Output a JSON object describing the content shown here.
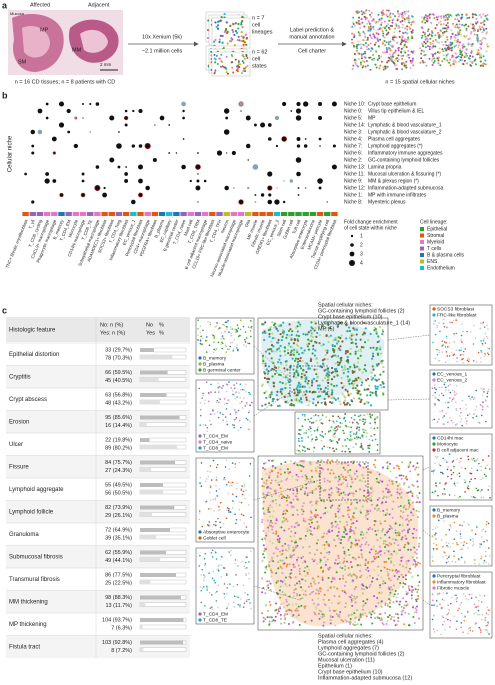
{
  "panel_a": {
    "label": "a",
    "affected": "Affected",
    "adjacent": "Adjacent",
    "tissue_labels": [
      "Mucosa",
      "MP",
      "SM",
      "MM"
    ],
    "scale": "2 mm",
    "caption": "n = 16 CD tissues; n = 8 patients with CD",
    "platform": "10x Xenium (5k)",
    "cells": "~2.1 million cells",
    "lineages": [
      "n = 7",
      "cell",
      "lineages"
    ],
    "states": [
      "n = 62",
      "cell",
      "states"
    ],
    "step": [
      "Label prediction &",
      "manual annotation"
    ],
    "charter": "Cell charter",
    "niches": "n = 15 spatial cellular niches"
  },
  "panel_b": {
    "label": "b",
    "y_label": "Cellular niche",
    "niches": [
      {
        "id": "Niche 10:",
        "name": "Crypt base epithelium",
        "color": "#222222"
      },
      {
        "id": "Niche 0:",
        "name": "Villus tip epithelium & IEL",
        "color": "#222222"
      },
      {
        "id": "Niche 5:",
        "name": "MP",
        "color": "#222222"
      },
      {
        "id": "Niche 14:",
        "name": "Lymphatic & blood vasculature_1",
        "color": "#222222"
      },
      {
        "id": "Niche 3:",
        "name": "Lymphatic & blood vasculature_2",
        "color": "#222222"
      },
      {
        "id": "Niche 4:",
        "name": "Plasma cell aggregates",
        "color": "#222222"
      },
      {
        "id": "Niche 7:",
        "name": "Lymphoid aggregates (*)",
        "color": "#3aa63a"
      },
      {
        "id": "Niche 6:",
        "name": "Inflammatory immune aggregates",
        "color": "#222222"
      },
      {
        "id": "Niche 2:",
        "name": "GC-containing lymphoid follicles",
        "color": "#222222"
      },
      {
        "id": "Niche 13:",
        "name": "Lamina propria",
        "color": "#222222"
      },
      {
        "id": "Niche 11:",
        "name": "Mucosal ulceration & fissuring (*)",
        "color": "#d62728"
      },
      {
        "id": "Niche 9:",
        "name": "MM & plexus region (*)",
        "color": "#9467bd"
      },
      {
        "id": "Niche 12:",
        "name": "Inflammation-adapted submucosa",
        "color": "#222222"
      },
      {
        "id": "Niche 1:",
        "name": "MP with immune infiltrates",
        "color": "#222222"
      },
      {
        "id": "Niche 8:",
        "name": "Myenteric plexus",
        "color": "#222222"
      }
    ],
    "size_legend_title": [
      "Fold change enrichment",
      "of cell state within niche"
    ],
    "size_legend": [
      1,
      2,
      3,
      4
    ],
    "lineage_title": "Cell lineage:",
    "lineages": [
      {
        "name": "Epithelial",
        "color": "#2ca02c"
      },
      {
        "name": "Stromal",
        "color": "#e6550d"
      },
      {
        "name": "Myeloid",
        "color": "#e377c2"
      },
      {
        "name": "T cells",
        "color": "#9467bd"
      },
      {
        "name": "B & plasma cells",
        "color": "#1f77b4"
      },
      {
        "name": "ENS",
        "color": "#bcbd22"
      },
      {
        "name": "Endothelium",
        "color": "#17becf"
      }
    ],
    "cell_states": [
      {
        "name": "TNC+ fibrotic myofibroblast",
        "color": "#e6550d"
      },
      {
        "name": "T_γδ",
        "color": "#9467bd"
      },
      {
        "name": "T_CD8_cycling",
        "color": "#9467bd"
      },
      {
        "name": "CXCL9+ macrophage",
        "color": "#e377c2"
      },
      {
        "name": "Phagocytic macrophage",
        "color": "#e377c2"
      },
      {
        "name": "B_memory",
        "color": "#1f77b4"
      },
      {
        "name": "T_CD4_EM",
        "color": "#9467bd"
      },
      {
        "name": "Monocyte",
        "color": "#e377c2"
      },
      {
        "name": "CD14hi macrophage",
        "color": "#e377c2"
      },
      {
        "name": "T_CD8_TE",
        "color": "#9467bd"
      },
      {
        "name": "Subepithelial macrophage",
        "color": "#e377c2"
      },
      {
        "name": "ADAMDEC1+ fibroblast",
        "color": "#e6550d"
      },
      {
        "name": "SOCS3+ fibroblast",
        "color": "#e6550d"
      },
      {
        "name": "T_CD4_Treg",
        "color": "#9467bd"
      },
      {
        "name": "Inflammatory fibroblast",
        "color": "#e6550d"
      },
      {
        "name": "EC_venous_1",
        "color": "#17becf"
      },
      {
        "name": "Pericryptal fibroblast",
        "color": "#e6550d"
      },
      {
        "name": "CD4+ macrophage",
        "color": "#e377c2"
      },
      {
        "name": "PDGFRA+ fibroblast",
        "color": "#e6550d"
      },
      {
        "name": "B_plasma",
        "color": "#1f77b4"
      },
      {
        "name": "EC_capillary",
        "color": "#17becf"
      },
      {
        "name": "B germinal center",
        "color": "#1f77b4"
      },
      {
        "name": "T_CD4_naive",
        "color": "#9467bd"
      },
      {
        "name": "Mast cell",
        "color": "#e377c2"
      },
      {
        "name": "T_CD8_TRM",
        "color": "#9467bd"
      },
      {
        "name": "B cell adjacent macrophage",
        "color": "#e377c2"
      },
      {
        "name": "CCL19+ FRC-like fibroblast",
        "color": "#e6550d"
      },
      {
        "name": "T_CD4_TFH",
        "color": "#9467bd"
      },
      {
        "name": "Neuron",
        "color": "#bcbd22"
      },
      {
        "name": "Neuron-associated macrophage",
        "color": "#e377c2"
      },
      {
        "name": "Muscle-associated macrophage",
        "color": "#e377c2"
      },
      {
        "name": "Glia",
        "color": "#bcbd22"
      },
      {
        "name": "MP muscle",
        "color": "#e6550d"
      },
      {
        "name": "Fibrotic muscle",
        "color": "#e6550d"
      },
      {
        "name": "GREM1+ fibroblast",
        "color": "#e6550d"
      },
      {
        "name": "EC_venous_2",
        "color": "#17becf"
      },
      {
        "name": "Stem cell",
        "color": "#2ca02c"
      },
      {
        "name": "Goblet cell",
        "color": "#2ca02c"
      },
      {
        "name": "Tuft cell",
        "color": "#2ca02c"
      },
      {
        "name": "Absorptive enterocyte",
        "color": "#2ca02c"
      },
      {
        "name": "Enteroendocrine",
        "color": "#2ca02c"
      },
      {
        "name": "MCAM+ pericyte",
        "color": "#e6550d"
      },
      {
        "name": "Transit-amplifying cell",
        "color": "#2ca02c"
      },
      {
        "name": "CD34+ pericryptal fibroblast",
        "color": "#e6550d"
      }
    ]
  },
  "panel_c": {
    "label": "c",
    "table": {
      "header": {
        "feature": "Histologic feature",
        "counts": [
          "No: n (%)",
          "Yes: n (%)"
        ],
        "bars": [
          "No",
          "%",
          "Yes",
          "%"
        ]
      },
      "rows": [
        {
          "feature": "Epithelial distortion",
          "no": "33 (29.7%)",
          "yes": "78 (70.3%)",
          "no_pct": 29.7,
          "yes_pct": 70.3
        },
        {
          "feature": "Cryptitis",
          "no": "66 (59.5%)",
          "yes": "45 (40.5%)",
          "no_pct": 59.5,
          "yes_pct": 40.5
        },
        {
          "feature": "Crypt abscess",
          "no": "63 (56.8%)",
          "yes": "48 (43.2%)",
          "no_pct": 56.8,
          "yes_pct": 43.2
        },
        {
          "feature": "Erosion",
          "no": "95 (85.6%)",
          "yes": "16 (14.4%)",
          "no_pct": 85.6,
          "yes_pct": 14.4
        },
        {
          "feature": "Ulcer",
          "no": "22 (19.8%)",
          "yes": "89 (80.2%)",
          "no_pct": 19.8,
          "yes_pct": 80.2
        },
        {
          "feature": "Fissure",
          "no": "84 (75.7%)",
          "yes": "27 (24.3%)",
          "no_pct": 75.7,
          "yes_pct": 24.3
        },
        {
          "feature": "Lymphoid aggregate",
          "no": "55 (49.5%)",
          "yes": "56 (50.5%)",
          "no_pct": 49.5,
          "yes_pct": 50.5
        },
        {
          "feature": "Lymphoid follicle",
          "no": "82 (73.9%)",
          "yes": "29 (26.1%)",
          "no_pct": 73.9,
          "yes_pct": 26.1
        },
        {
          "feature": "Granuloma",
          "no": "72 (64.9%)",
          "yes": "39 (35.1%)",
          "no_pct": 64.9,
          "yes_pct": 35.1
        },
        {
          "feature": "Submucosal fibrosis",
          "no": "62 (55.9%)",
          "yes": "49 (44.1%)",
          "no_pct": 55.9,
          "yes_pct": 44.1
        },
        {
          "feature": "Transmural fibrosis",
          "no": "86 (77.5%)",
          "yes": "25 (22.5%)",
          "no_pct": 77.5,
          "yes_pct": 22.5
        },
        {
          "feature": "MM thickening",
          "no": "98 (88.3%)",
          "yes": "13 (11.7%)",
          "no_pct": 88.3,
          "yes_pct": 11.7
        },
        {
          "feature": "MP thickening",
          "no": "104 (93.7%)",
          "yes": "7 (6.3%)",
          "no_pct": 93.7,
          "yes_pct": 6.3
        },
        {
          "feature": "Fistula tract",
          "no": "103 (92.8%)",
          "yes": "8 (7.2%)",
          "no_pct": 92.8,
          "yes_pct": 7.2
        }
      ]
    },
    "top_niches": {
      "title": "Spatial cellular niches:",
      "items": [
        {
          "label": "GC-containing lymphoid follicles (2)",
          "color": "#3aa63a"
        },
        {
          "label": "Crypt base epithelium (10)",
          "color": "#b8d88a"
        },
        {
          "label": "Lymphatic & blood vasculature_1 (14)",
          "color": "#2ab0c8"
        },
        {
          "label": "MP (5)",
          "color": "#8a5a3c"
        }
      ]
    },
    "bottom_niches": {
      "title": "Spatial cellular niches:",
      "items": [
        {
          "label": "Plasma cell aggregates (4)",
          "color": "#b84fd6"
        },
        {
          "label": "Lymphoid aggregates (7)",
          "color": "#e08fd8"
        },
        {
          "label": "GC-containing lymphoid follicles (2)",
          "color": "#3aa63a"
        },
        {
          "label": "Mucosal ulceration (11)",
          "color": "#d9a0a0"
        },
        {
          "label": "Epithelium (1)",
          "color": "#a0c878"
        },
        {
          "label": "Crypt base epithelium (10)",
          "color": "#c8d89a"
        },
        {
          "label": "Inflammation-adapted submucosa (12)",
          "color": "#f08a2a"
        }
      ]
    },
    "insets": [
      {
        "items": [
          {
            "label": "B_memory",
            "color": "#1f77b4"
          },
          {
            "label": "B_plasma",
            "color": "#8fb83a"
          },
          {
            "label": "B germinal center",
            "color": "#2ca02c"
          }
        ]
      },
      {
        "items": [
          {
            "label": "T_CD4_EM",
            "color": "#9467bd"
          },
          {
            "label": "T_CD4_naive",
            "color": "#e377c2"
          },
          {
            "label": "T_CD8_EM",
            "color": "#17a2b8"
          }
        ]
      },
      {
        "items": [
          {
            "label": "Absorptive enterocyte",
            "color": "#1f77b4"
          },
          {
            "label": "Goblet cell",
            "color": "#e6550d"
          }
        ]
      },
      {
        "items": [
          {
            "label": "T_CD4_EM",
            "color": "#9467bd"
          },
          {
            "label": "T_CD8_TE",
            "color": "#17a2b8"
          }
        ]
      },
      {
        "items": [
          {
            "label": "SOCS3 fibroblast",
            "color": "#e6550d"
          },
          {
            "label": "FRC-like fibroblast",
            "color": "#17becf"
          }
        ]
      },
      {
        "items": [
          {
            "label": "EC_venous_1",
            "color": "#1f77b4"
          },
          {
            "label": "EC_venous_2",
            "color": "#e377c2"
          }
        ]
      },
      {
        "items": [
          {
            "label": "CD14hi mac",
            "color": "#1f77b4"
          },
          {
            "label": "Monocyte",
            "color": "#2ca02c"
          },
          {
            "label": "B cell adjacent mac",
            "color": "#d62728"
          }
        ]
      },
      {
        "items": [
          {
            "label": "B_memory",
            "color": "#1f77b4"
          },
          {
            "label": "B_plasma",
            "color": "#f08a2a"
          }
        ]
      },
      {
        "items": [
          {
            "label": "Pericryptal fibroblast",
            "color": "#1f77b4"
          },
          {
            "label": "Inflammatory fibroblast",
            "color": "#f08a2a"
          },
          {
            "label": "Fibrotic muscle",
            "color": "#e377c2"
          }
        ]
      }
    ]
  }
}
